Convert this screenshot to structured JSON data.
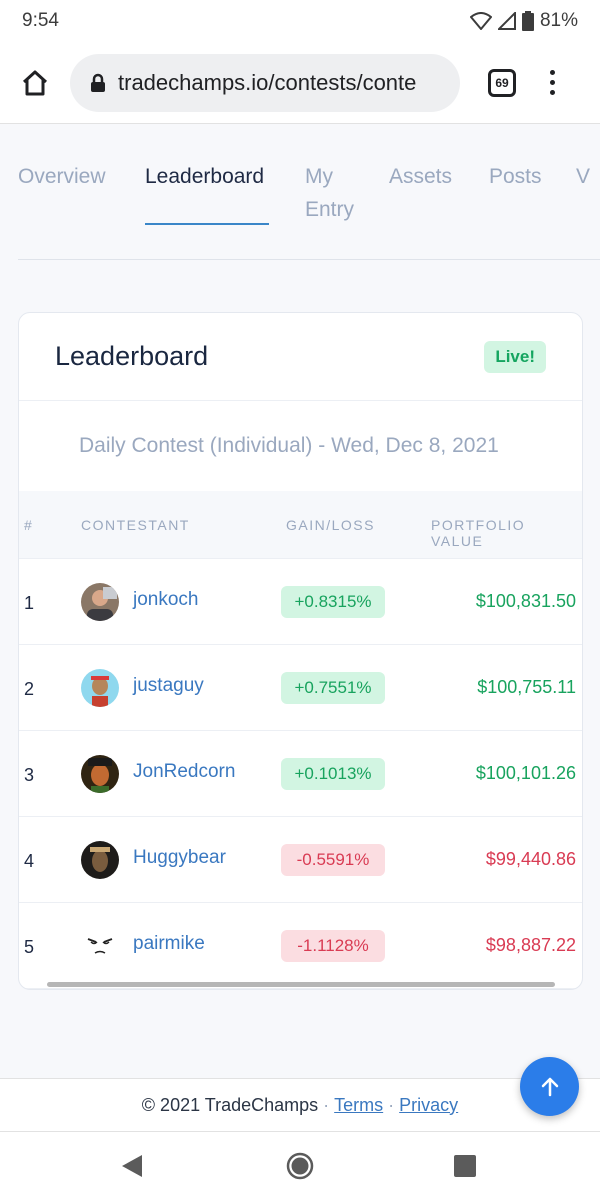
{
  "status_bar": {
    "time": "9:54",
    "battery": "81%"
  },
  "browser": {
    "url": "tradechamps.io/contests/conte",
    "tab_count": "69"
  },
  "nav_tabs": [
    {
      "label": "Overview"
    },
    {
      "label": "Leaderboard"
    },
    {
      "label": "My Entry"
    },
    {
      "label": "Assets"
    },
    {
      "label": "Posts"
    },
    {
      "label": "V"
    }
  ],
  "leaderboard": {
    "title": "Leaderboard",
    "live_badge": "Live!",
    "contest_name": "Daily Contest (Individual) - Wed, Dec 8, 2021",
    "columns": [
      "#",
      "CONTESTANT",
      "GAIN/LOSS",
      "PORTFOLIO VALUE"
    ],
    "rows": [
      {
        "rank": "1",
        "name": "jonkoch",
        "gain": "+0.8315%",
        "value": "$100,831.50",
        "direction": "pos"
      },
      {
        "rank": "2",
        "name": "justaguy",
        "gain": "+0.7551%",
        "value": "$100,755.11",
        "direction": "pos"
      },
      {
        "rank": "3",
        "name": "JonRedcorn",
        "gain": "+0.1013%",
        "value": "$100,101.26",
        "direction": "pos"
      },
      {
        "rank": "4",
        "name": "Huggybear",
        "gain": "-0.5591%",
        "value": "$99,440.86",
        "direction": "neg"
      },
      {
        "rank": "5",
        "name": "pairmike",
        "gain": "-1.1128%",
        "value": "$98,887.22",
        "direction": "neg"
      }
    ]
  },
  "footer": {
    "copyright": "© 2021 TradeChamps",
    "terms": "Terms",
    "privacy": "Privacy"
  },
  "colors": {
    "positive": "#18a35e",
    "negative": "#d93b53",
    "link": "#3a78c0",
    "fab": "#2b7de9"
  }
}
